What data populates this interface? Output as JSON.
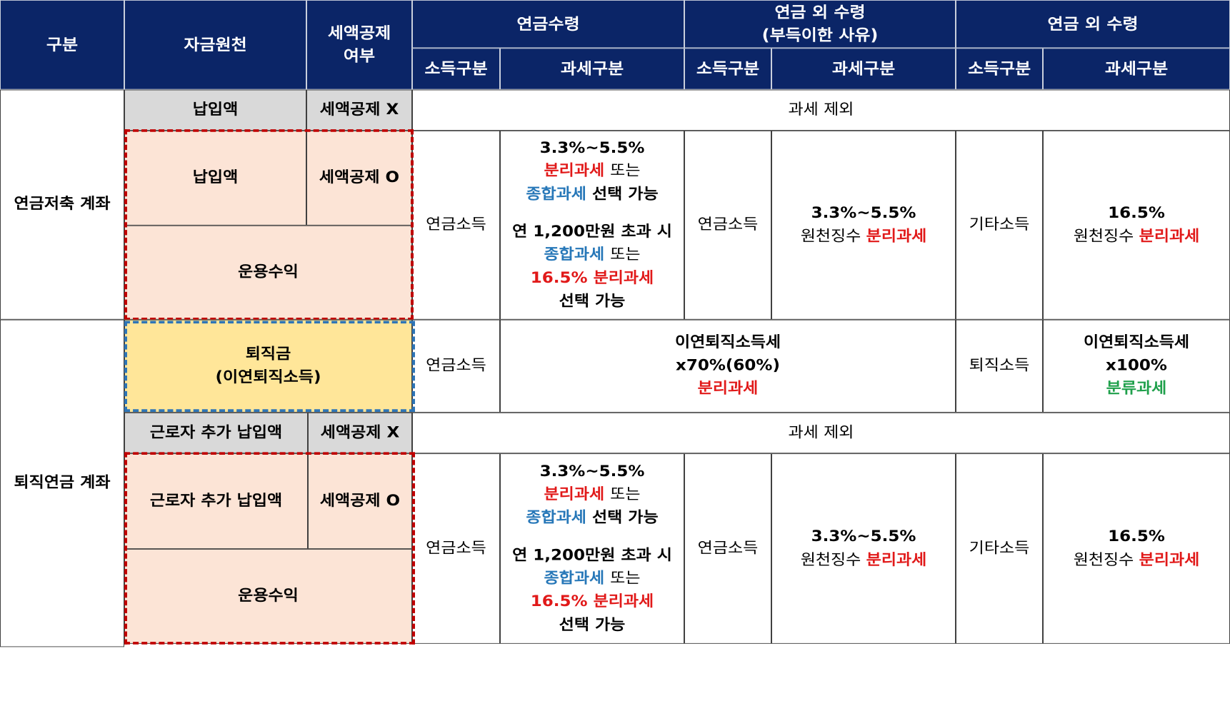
{
  "header": {
    "gubun": "구분",
    "source": "자금원천",
    "deduction": [
      "세액공제",
      "여부"
    ],
    "pension": "연금수령",
    "nonpension_unavoidable": [
      "연금 외 수령",
      "(부득이한 사유)"
    ],
    "nonpension": "연금 외 수령",
    "income_type": "소득구분",
    "tax_type": "과세구분"
  },
  "savings": {
    "account": "연금저축 계좌",
    "row1": {
      "source": "납입액",
      "deduction": "세액공제 X",
      "taxation": "과세 제외"
    },
    "row2": {
      "source": "납입액",
      "deduction": "세액공제 O"
    },
    "row3": {
      "source": "운용수익"
    },
    "pension_income": "연금소득",
    "pension_tax": {
      "rate": "3.3%~5.5%",
      "separate": "분리과세",
      "or": "또는",
      "comprehensive": "종합과세",
      "choosable": "선택 가능",
      "over": "연 1,200만원 초과 시",
      "comprehensive2": "종합과세",
      "or2": "또는",
      "rate2": "16.5% 분리과세",
      "choosable2": "선택 가능"
    },
    "unavoidable_income": "연금소득",
    "unavoidable_tax": {
      "rate": "3.3%~5.5%",
      "withholding": "원천징수",
      "separate": "분리과세"
    },
    "other_income": "기타소득",
    "other_tax": {
      "rate": "16.5%",
      "withholding": "원천징수",
      "separate": "분리과세"
    }
  },
  "retirement": {
    "account": "퇴직연금 계좌",
    "severance": {
      "source_line1": "퇴직금",
      "source_line2": "(이연퇴직소득)",
      "pension_income": "연금소득",
      "pension_tax": {
        "line1": "이연퇴직소득세",
        "line2": "x70%(60%)",
        "line3": "분리과세"
      },
      "other_income": "퇴직소득",
      "other_tax": {
        "line1": "이연퇴직소득세",
        "line2": "x100%",
        "line3": "분류과세"
      }
    },
    "row1": {
      "source": "근로자 추가 납입액",
      "deduction": "세액공제 X",
      "taxation": "과세 제외"
    },
    "row2": {
      "source": "근로자 추가 납입액",
      "deduction": "세액공제 O"
    },
    "row3": {
      "source": "운용수익"
    },
    "pension_income": "연금소득",
    "pension_tax": {
      "rate": "3.3%~5.5%",
      "separate": "분리과세",
      "or": "또는",
      "comprehensive": "종합과세",
      "choosable": "선택 가능",
      "over": "연 1,200만원 초과 시",
      "comprehensive2": "종합과세",
      "or2": "또는",
      "rate2": "16.5% 분리과세",
      "choosable2": "선택 가능"
    },
    "unavoidable_income": "연금소득",
    "unavoidable_tax": {
      "rate": "3.3%~5.5%",
      "withholding": "원천징수",
      "separate": "분리과세"
    },
    "other_income": "기타소득",
    "other_tax": {
      "rate": "16.5%",
      "withholding": "원천징수",
      "separate": "분리과세"
    }
  },
  "colors": {
    "header_bg": "#0b2567",
    "red": "#e11919",
    "blue": "#2677b8",
    "green": "#1fa04b",
    "pink": "#fce4d6",
    "yellow": "#ffe699",
    "gray": "#d9d9d9"
  }
}
